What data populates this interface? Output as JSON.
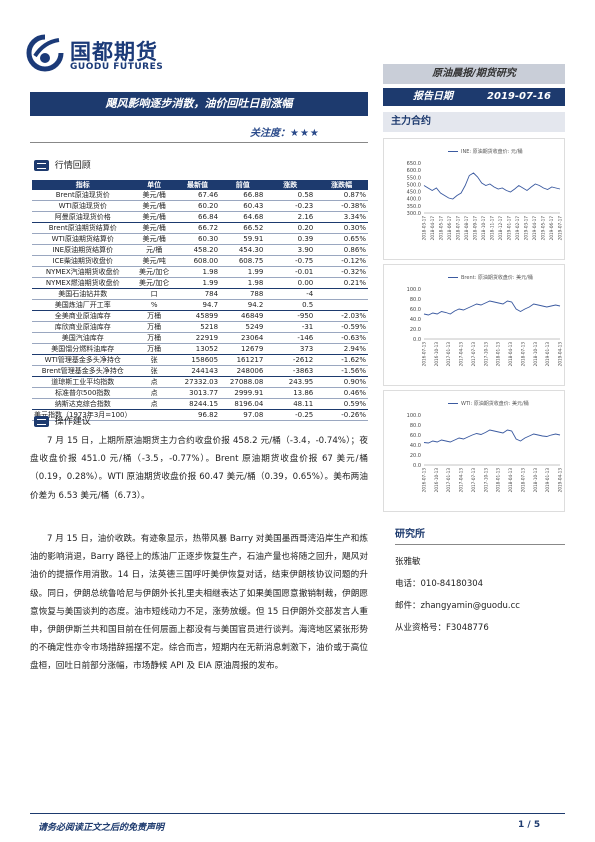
{
  "logo": {
    "cn": "国都期货",
    "en": "GUODU FUTURES"
  },
  "header": {
    "report_type": "原油晨报/期货研究",
    "date_label": "报告日期",
    "date": "2019-07-16"
  },
  "title": "飓风影响逐步消散，油价回吐日前涨幅",
  "attention": {
    "label": "关注度：",
    "stars": "★★★"
  },
  "section_market": "行情回顾",
  "table": {
    "headers": [
      "指标",
      "单位",
      "最新值",
      "前值",
      "涨跌",
      "涨跌幅"
    ],
    "rows": [
      [
        "Brent原油现货价",
        "美元/桶",
        "67.46",
        "66.88",
        "0.58",
        "0.87%"
      ],
      [
        "WTI原油现货价",
        "美元/桶",
        "60.20",
        "60.43",
        "-0.23",
        "-0.38%"
      ],
      [
        "阿曼原油现货价格",
        "美元/桶",
        "66.84",
        "64.68",
        "2.16",
        "3.34%"
      ],
      [
        "Brent原油期货结算价",
        "美元/桶",
        "66.72",
        "66.52",
        "0.20",
        "0.30%"
      ],
      [
        "WTI原油期货结算价",
        "美元/桶",
        "60.30",
        "59.91",
        "0.39",
        "0.65%"
      ],
      [
        "INE原油期货结算价",
        "元/桶",
        "458.20",
        "454.30",
        "3.90",
        "0.86%"
      ],
      [
        "ICE柴油期货收盘价",
        "美元/吨",
        "608.00",
        "608.75",
        "-0.75",
        "-0.12%"
      ],
      [
        "NYMEX汽油期货收盘价",
        "美元/加仑",
        "1.98",
        "1.99",
        "-0.01",
        "-0.32%"
      ],
      [
        "NYMEX燃油期货收盘价",
        "美元/加仑",
        "1.99",
        "1.98",
        "0.00",
        "0.21%"
      ],
      [
        "美国石油钻井数",
        "口",
        "784",
        "788",
        "-4",
        ""
      ],
      [
        "美国炼油厂开工率",
        "%",
        "94.7",
        "94.2",
        "0.5",
        ""
      ],
      [
        "全美商业原油库存",
        "万桶",
        "45899",
        "46849",
        "-950",
        "-2.03%"
      ],
      [
        "库欣商业原油库存",
        "万桶",
        "5218",
        "5249",
        "-31",
        "-0.59%"
      ],
      [
        "美国汽油库存",
        "万桶",
        "22919",
        "23064",
        "-146",
        "-0.63%"
      ],
      [
        "美国馏分燃料油库存",
        "万桶",
        "13052",
        "12679",
        "373",
        "2.94%"
      ],
      [
        "WTI管理基金多头净持仓",
        "张",
        "158605",
        "161217",
        "-2612",
        "-1.62%"
      ],
      [
        "Brent管理基金多头净持仓",
        "张",
        "244143",
        "248006",
        "-3863",
        "-1.56%"
      ],
      [
        "道琼斯工业平均指数",
        "点",
        "27332.03",
        "27088.08",
        "243.95",
        "0.90%"
      ],
      [
        "标准普尔500指数",
        "点",
        "3013.77",
        "2999.91",
        "13.86",
        "0.46%"
      ],
      [
        "纳斯达克综合指数",
        "点",
        "8244.15",
        "8196.04",
        "48.11",
        "0.59%"
      ],
      [
        "美元指数（1973年3月=100）",
        "",
        "96.82",
        "97.08",
        "-0.25",
        "-0.26%"
      ]
    ]
  },
  "section_advice": "操作建议",
  "para1": "7 月 15 日，上期所原油期货主力合约收盘价报 458.2 元/桶（-3.4，-0.74%）；夜盘收盘价报 451.0 元/桶（-3.5，-0.77%）。Brent 原油期货收盘价报 67 美元/桶（0.19，0.28%）。WTI 原油期货收盘价报 60.47 美元/桶（0.39，0.65%）。美布两油价差为 6.53 美元/桶（6.73）。",
  "para2": "7 月 15 日，油价收跌。有迹象显示，热带风暴 Barry 对美国墨西哥湾沿岸生产和炼油的影响消退，Barry 路径上的炼油厂正逐步恢复生产，石油产量也将随之回升，飓风对油价的提振作用消散。14 日，法英德三国呼吁美伊恢复对话，结束伊朗核协议问题的升级。同日，伊朗总统鲁哈尼与伊朗外长扎里夫相继表达了如果美国愿意撤销制裁，伊朗愿意恢复与美国谈判的态度。油市短线动力不足，涨势放缓。但 15 日伊朗外交部发言人重申，伊朗伊斯兰共和国目前在任何层面上都没有与美国官员进行谈判。海湾地区紧张形势的不确定性亦令市场措辞摇摆不定。综合而言，短期内在无新消息刺激下，油价或于高位盘桓，回吐日前部分涨幅，市场静候 API 及 EIA 原油周报的发布。",
  "right_section": "主力合约",
  "charts": [
    {
      "legend": "INE: 原油期货收盘价: 元/桶",
      "yticks": [
        "650.0",
        "600.0",
        "550.0",
        "500.0",
        "450.0",
        "400.0",
        "350.0",
        "300.0"
      ],
      "xticks": [
        "2018-03-17",
        "2018-04-17",
        "2018-05-17",
        "2018-06-17",
        "2018-07-17",
        "2018-08-17",
        "2018-09-17",
        "2018-10-17",
        "2018-11-17",
        "2018-12-17",
        "2019-01-17",
        "2019-02-17",
        "2019-03-17",
        "2019-04-17",
        "2019-05-17",
        "2019-06-17",
        "2019-07-17"
      ]
    },
    {
      "legend": "Brent: 原油期货收盘价: 美元/桶",
      "yticks": [
        "100.0",
        "80.0",
        "60.0",
        "40.0",
        "20.0",
        "0.0"
      ],
      "xticks": [
        "2016-07-13",
        "2016-10-13",
        "2017-01-13",
        "2017-04-13",
        "2017-07-13",
        "2017-10-13",
        "2018-01-13",
        "2018-04-13",
        "2018-07-13",
        "2018-10-13",
        "2019-01-13",
        "2019-04-13"
      ]
    },
    {
      "legend": "WTI: 原油期货收盘价: 美元/桶",
      "yticks": [
        "100.0",
        "80.0",
        "60.0",
        "40.0",
        "20.0",
        "0.0"
      ],
      "xticks": [
        "2016-07-13",
        "2016-10-13",
        "2017-01-13",
        "2017-04-13",
        "2017-07-13",
        "2017-10-13",
        "2018-01-13",
        "2018-04-13",
        "2018-07-13",
        "2018-10-13",
        "2019-01-13",
        "2019-04-13"
      ]
    }
  ],
  "research": {
    "heading": "研究所",
    "name": "张雅敏",
    "phone": "电话：010-84180304",
    "email": "邮件：zhangyamin@guodu.cc",
    "license": "从业资格号：F3048776"
  },
  "footer": {
    "disclaimer": "请务必阅读正文之后的免责声明",
    "page": "1 / 5"
  }
}
